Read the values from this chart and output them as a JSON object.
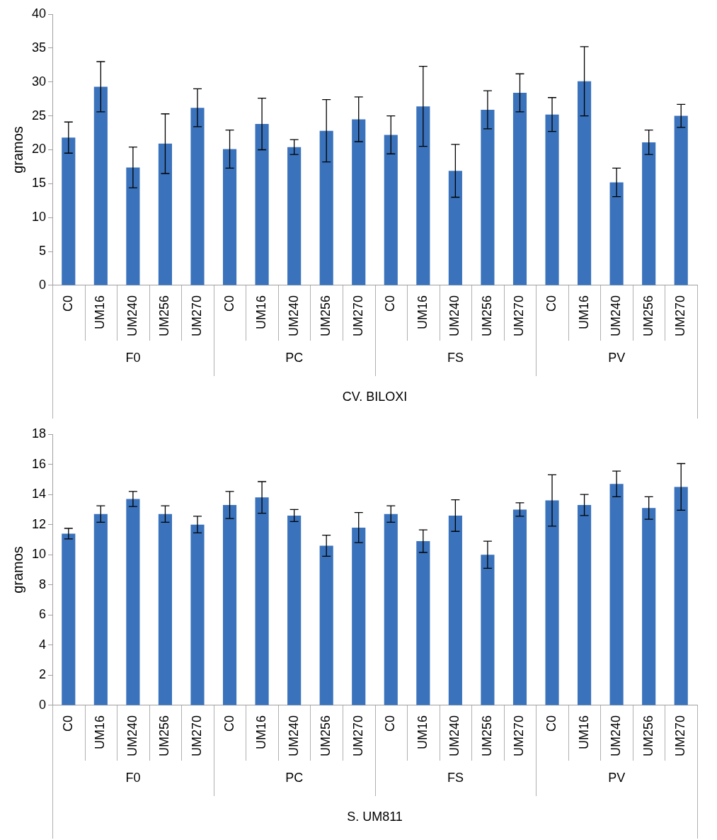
{
  "chart_data": [
    {
      "type": "bar",
      "ylabel": "gramos",
      "xlabel": "CV. BILOXI",
      "annotations": [
        "F0",
        "PC",
        "FS",
        "PV"
      ],
      "categories": [
        "C0",
        "UM16",
        "UM240",
        "UM256",
        "UM270",
        "C0",
        "UM16",
        "UM240",
        "UM256",
        "UM270",
        "C0",
        "UM16",
        "UM240",
        "UM256",
        "UM270",
        "C0",
        "UM16",
        "UM240",
        "UM256",
        "UM270"
      ],
      "values": [
        21.8,
        29.3,
        17.4,
        20.9,
        26.2,
        20.1,
        23.8,
        20.4,
        22.8,
        24.5,
        22.2,
        26.4,
        16.9,
        25.9,
        28.4,
        25.2,
        30.1,
        15.2,
        21.1,
        25.0
      ],
      "errors": [
        2.3,
        3.7,
        3.0,
        4.4,
        2.8,
        2.8,
        3.8,
        1.1,
        4.6,
        3.3,
        2.8,
        5.9,
        3.9,
        2.8,
        2.8,
        2.5,
        5.1,
        2.1,
        1.8,
        1.7
      ],
      "color": "#3a72bb",
      "ylim": [
        0,
        40
      ],
      "yticks": [
        0,
        5,
        10,
        15,
        20,
        25,
        30,
        35,
        40
      ],
      "grid": false,
      "legend": false
    },
    {
      "type": "bar",
      "ylabel": "gramos",
      "xlabel": "S. UM811",
      "annotations": [
        "F0",
        "PC",
        "FS",
        "PV"
      ],
      "categories": [
        "C0",
        "UM16",
        "UM240",
        "UM256",
        "UM270",
        "C0",
        "UM16",
        "UM240",
        "UM256",
        "UM270",
        "C0",
        "UM16",
        "UM240",
        "UM256",
        "UM270",
        "C0",
        "UM16",
        "UM240",
        "UM256",
        "UM270"
      ],
      "values": [
        11.4,
        12.7,
        13.7,
        12.7,
        12.0,
        13.3,
        13.8,
        12.6,
        10.6,
        11.8,
        12.7,
        10.9,
        12.6,
        10.0,
        13.0,
        13.6,
        13.3,
        14.7,
        13.1,
        14.5
      ],
      "errors": [
        0.35,
        0.55,
        0.5,
        0.55,
        0.55,
        0.9,
        1.05,
        0.4,
        0.7,
        1.0,
        0.55,
        0.75,
        1.05,
        0.9,
        0.45,
        1.7,
        0.7,
        0.85,
        0.75,
        1.55
      ],
      "color": "#3a72bb",
      "ylim": [
        0,
        18
      ],
      "yticks": [
        0,
        2,
        4,
        6,
        8,
        10,
        12,
        14,
        16,
        18
      ],
      "grid": false,
      "legend": false
    }
  ]
}
